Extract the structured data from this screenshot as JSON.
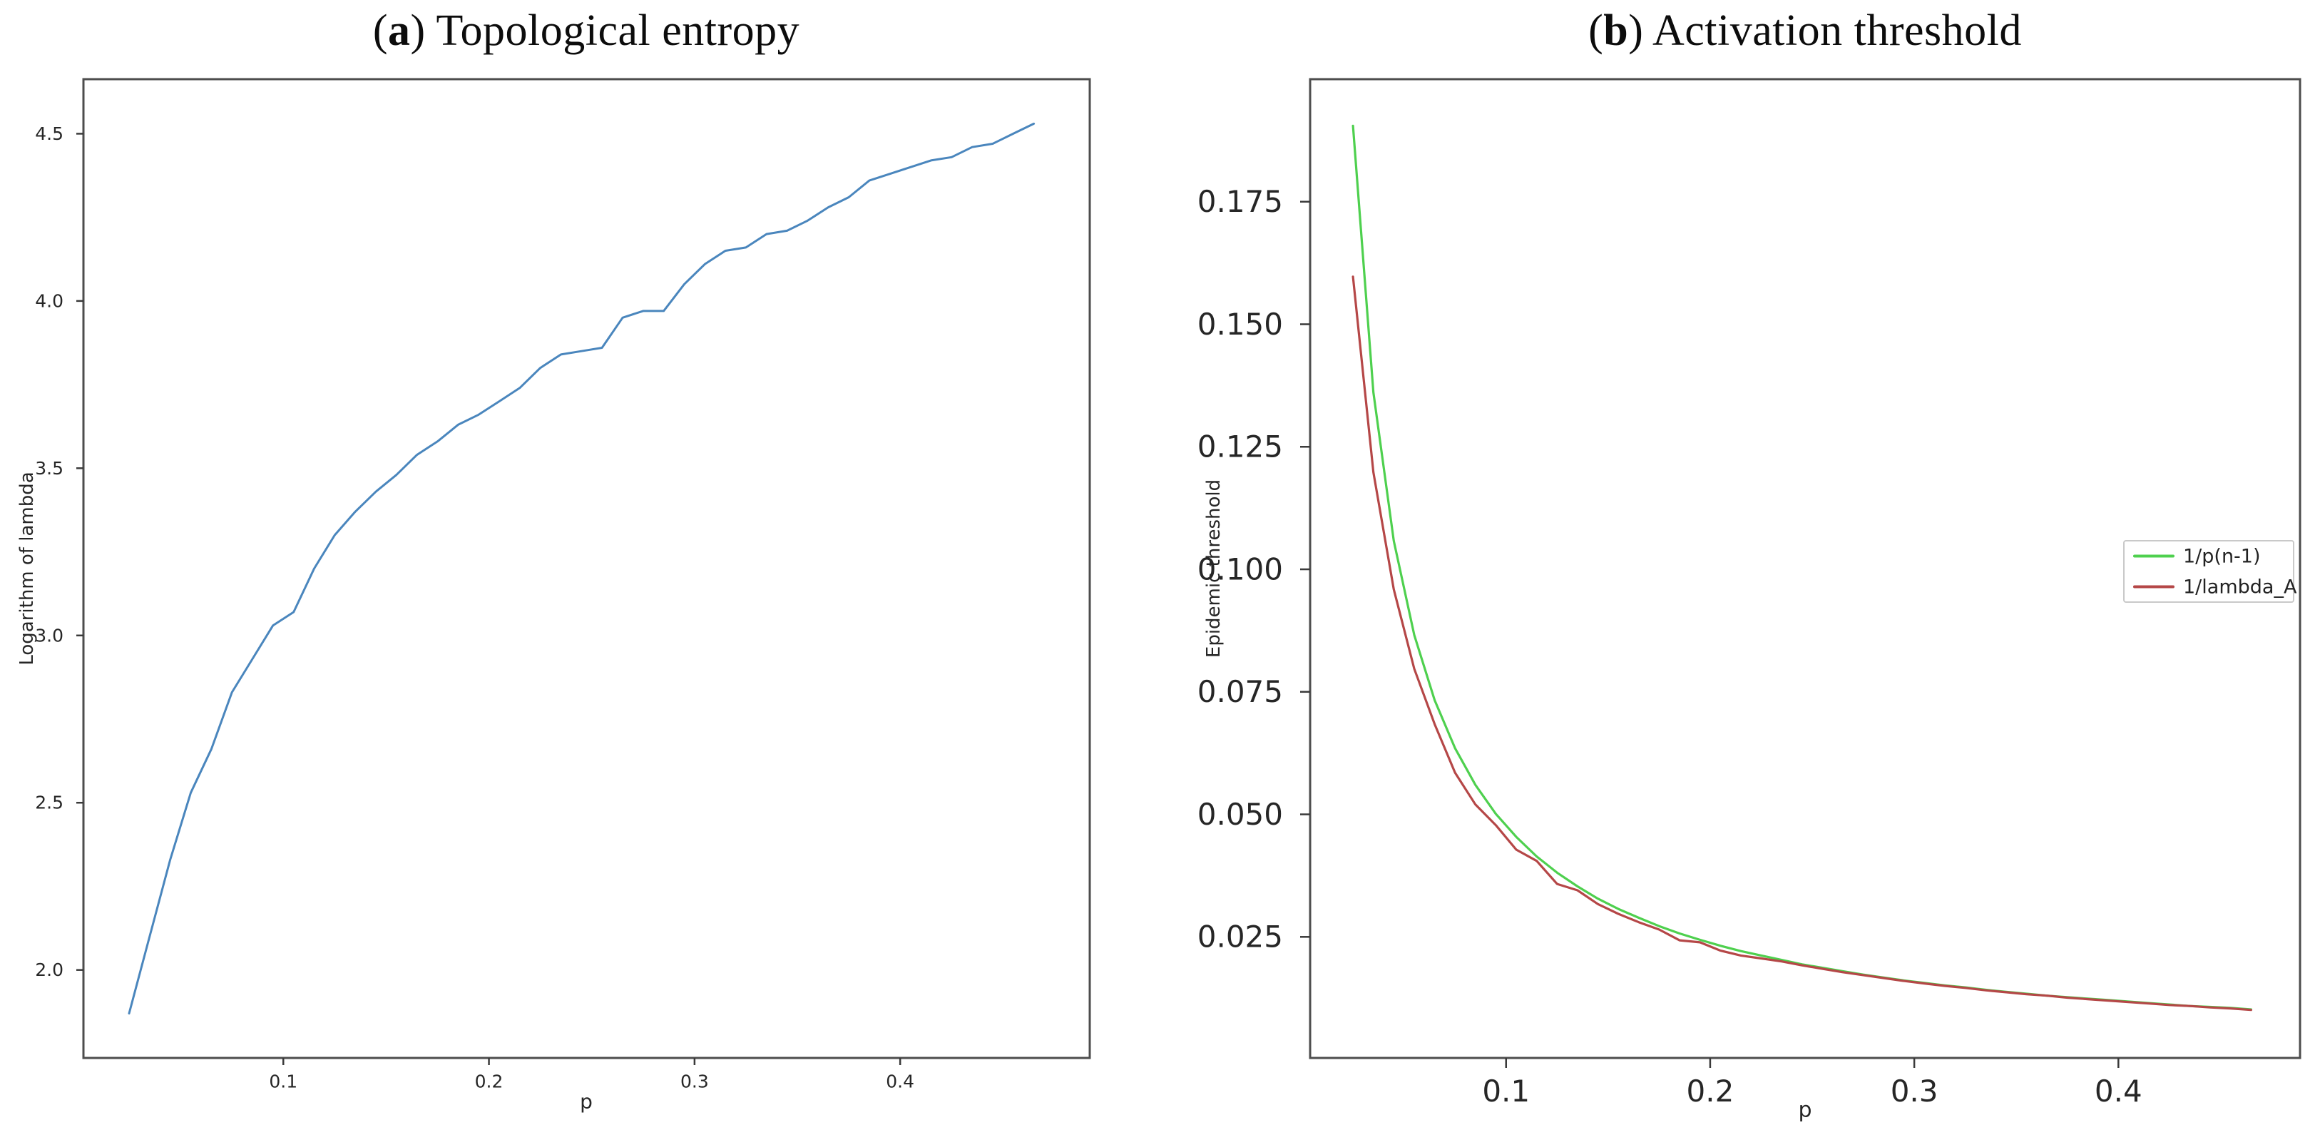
{
  "figure": {
    "background": "#ffffff",
    "spine_color": "#4d4d4d",
    "tick_color": "#3a3a3a",
    "tick_text_color": "#262626"
  },
  "chart_data": [
    {
      "type": "line",
      "title": "(a) Topological entropy",
      "title_parts": {
        "open": "(",
        "bold": "a",
        "rest": ") Topological entropy"
      },
      "xlabel": "p",
      "ylabel": "Logarithm of lambda",
      "xlim": [
        0.0028,
        0.4922
      ],
      "ylim": [
        1.737,
        4.663
      ],
      "grid": false,
      "legend_position": "none",
      "x_ticks": [
        0.1,
        0.2,
        0.3,
        0.4
      ],
      "x_tick_labels": [
        "0.1",
        "0.2",
        "0.3",
        "0.4"
      ],
      "y_ticks": [
        2.0,
        2.5,
        3.0,
        3.5,
        4.0,
        4.5
      ],
      "y_tick_labels": [
        "2.0",
        "2.5",
        "3.0",
        "3.5",
        "4.0",
        "4.5"
      ],
      "x": [
        0.025,
        0.035,
        0.045,
        0.055,
        0.065,
        0.075,
        0.085,
        0.095,
        0.105,
        0.115,
        0.125,
        0.135,
        0.145,
        0.155,
        0.165,
        0.175,
        0.185,
        0.195,
        0.205,
        0.215,
        0.225,
        0.235,
        0.245,
        0.255,
        0.265,
        0.275,
        0.285,
        0.295,
        0.305,
        0.315,
        0.325,
        0.335,
        0.345,
        0.355,
        0.365,
        0.375,
        0.385,
        0.395,
        0.405,
        0.415,
        0.425,
        0.435,
        0.445,
        0.455,
        0.465
      ],
      "series": [
        {
          "name": "Logarithm of lambda",
          "color": "#4a86bd",
          "values": [
            1.87,
            2.1,
            2.33,
            2.53,
            2.66,
            2.83,
            2.93,
            3.03,
            3.07,
            3.2,
            3.3,
            3.37,
            3.43,
            3.48,
            3.54,
            3.58,
            3.63,
            3.66,
            3.7,
            3.74,
            3.8,
            3.84,
            3.85,
            3.86,
            3.95,
            3.97,
            3.97,
            4.05,
            4.11,
            4.15,
            4.16,
            4.2,
            4.21,
            4.24,
            4.28,
            4.31,
            4.36,
            4.38,
            4.4,
            4.42,
            4.43,
            4.46,
            4.47,
            4.5,
            4.53
          ]
        }
      ]
    },
    {
      "type": "line",
      "title": "(b) Activation threshold",
      "title_parts": {
        "open": "(",
        "bold": "b",
        "rest": ") Activation threshold"
      },
      "xlabel": "p",
      "ylabel": "Epidemic threshold",
      "xlim": [
        0.004,
        0.489
      ],
      "ylim": [
        0.0003,
        0.2
      ],
      "grid": false,
      "legend_position": "center right",
      "x_ticks": [
        0.1,
        0.2,
        0.3,
        0.4
      ],
      "x_tick_labels": [
        "0.1",
        "0.2",
        "0.3",
        "0.4"
      ],
      "y_ticks": [
        0.025,
        0.05,
        0.075,
        0.1,
        0.125,
        0.15,
        0.175
      ],
      "y_tick_labels": [
        "0.025",
        "0.050",
        "0.075",
        "0.100",
        "0.125",
        "0.150",
        "0.175"
      ],
      "x": [
        0.025,
        0.035,
        0.045,
        0.055,
        0.065,
        0.075,
        0.085,
        0.095,
        0.105,
        0.115,
        0.125,
        0.135,
        0.145,
        0.155,
        0.165,
        0.175,
        0.185,
        0.195,
        0.205,
        0.215,
        0.225,
        0.235,
        0.245,
        0.255,
        0.265,
        0.275,
        0.285,
        0.295,
        0.305,
        0.315,
        0.325,
        0.335,
        0.345,
        0.355,
        0.365,
        0.375,
        0.385,
        0.395,
        0.405,
        0.415,
        0.425,
        0.435,
        0.445,
        0.455,
        0.465
      ],
      "series": [
        {
          "name": "1/p(n-1)",
          "color": "#4ed04e",
          "values": [
            0.1905,
            0.1361,
            0.1058,
            0.0866,
            0.0733,
            0.0635,
            0.056,
            0.0501,
            0.0454,
            0.0414,
            0.0381,
            0.0353,
            0.0328,
            0.0307,
            0.0289,
            0.0272,
            0.0257,
            0.0244,
            0.0232,
            0.0221,
            0.0212,
            0.0203,
            0.0194,
            0.0187,
            0.018,
            0.0173,
            0.0167,
            0.0161,
            0.0156,
            0.0151,
            0.0147,
            0.0142,
            0.0138,
            0.0134,
            0.013,
            0.0127,
            0.0124,
            0.0121,
            0.0118,
            0.0115,
            0.0112,
            0.0109,
            0.0107,
            0.0105,
            0.0102
          ]
        },
        {
          "name": "1/lambda_A",
          "color": "#b54747",
          "values": [
            0.1597,
            0.1198,
            0.0959,
            0.0797,
            0.0684,
            0.0585,
            0.052,
            0.0478,
            0.0428,
            0.0405,
            0.0358,
            0.0345,
            0.0317,
            0.0297,
            0.028,
            0.0265,
            0.0243,
            0.0239,
            0.0222,
            0.0212,
            0.0206,
            0.02,
            0.0192,
            0.0185,
            0.0178,
            0.0172,
            0.0166,
            0.016,
            0.0155,
            0.015,
            0.0146,
            0.0141,
            0.0137,
            0.0133,
            0.013,
            0.0126,
            0.0123,
            0.012,
            0.0117,
            0.0114,
            0.0111,
            0.0109,
            0.0106,
            0.0104,
            0.0101
          ]
        }
      ],
      "legend": {
        "entries": [
          {
            "label": "1/p(n-1)",
            "color": "#4ed04e"
          },
          {
            "label": "1/lambda_A",
            "color": "#b54747"
          }
        ]
      }
    }
  ]
}
